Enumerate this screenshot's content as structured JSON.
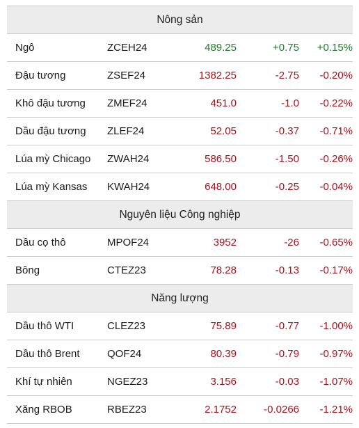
{
  "colors": {
    "positive": "#1e7a2e",
    "negative": "#a5121d",
    "section_bg": "#ececec"
  },
  "sections": [
    {
      "title": "Nông sản",
      "rows": [
        {
          "name": "Ngô",
          "code": "ZCEH24",
          "price": "489.25",
          "change": "+0.75",
          "pct": "+0.15%",
          "dir": "pos"
        },
        {
          "name": "Đậu tương",
          "code": "ZSEF24",
          "price": "1382.25",
          "change": "-2.75",
          "pct": "-0.20%",
          "dir": "neg"
        },
        {
          "name": "Khô đậu tương",
          "code": "ZMEF24",
          "price": "451.0",
          "change": "-1.0",
          "pct": "-0.22%",
          "dir": "neg"
        },
        {
          "name": "Dầu đậu tương",
          "code": "ZLEF24",
          "price": "52.05",
          "change": "-0.37",
          "pct": "-0.71%",
          "dir": "neg"
        },
        {
          "name": "Lúa mỳ Chicago",
          "code": "ZWAH24",
          "price": "586.50",
          "change": "-1.50",
          "pct": "-0.26%",
          "dir": "neg"
        },
        {
          "name": "Lúa mỳ Kansas",
          "code": "KWAH24",
          "price": "648.00",
          "change": "-0.25",
          "pct": "-0.04%",
          "dir": "neg"
        }
      ]
    },
    {
      "title": "Nguyên liệu Công nghiệp",
      "rows": [
        {
          "name": "Dầu cọ thô",
          "code": "MPOF24",
          "price": "3952",
          "change": "-26",
          "pct": "-0.65%",
          "dir": "neg"
        },
        {
          "name": "Bông",
          "code": "CTEZ23",
          "price": "78.28",
          "change": "-0.13",
          "pct": "-0.17%",
          "dir": "neg"
        }
      ]
    },
    {
      "title": "Năng lượng",
      "rows": [
        {
          "name": "Dầu thô WTI",
          "code": "CLEZ23",
          "price": "75.89",
          "change": "-0.77",
          "pct": "-1.00%",
          "dir": "neg"
        },
        {
          "name": "Dầu thô Brent",
          "code": "QOF24",
          "price": "80.39",
          "change": "-0.79",
          "pct": "-0.97%",
          "dir": "neg"
        },
        {
          "name": "Khí tự nhiên",
          "code": "NGEZ23",
          "price": "3.156",
          "change": "-0.03",
          "pct": "-1.07%",
          "dir": "neg"
        },
        {
          "name": "Xăng RBOB",
          "code": "RBEZ23",
          "price": "2.1752",
          "change": "-0.0266",
          "pct": "-1.21%",
          "dir": "neg"
        }
      ]
    }
  ]
}
